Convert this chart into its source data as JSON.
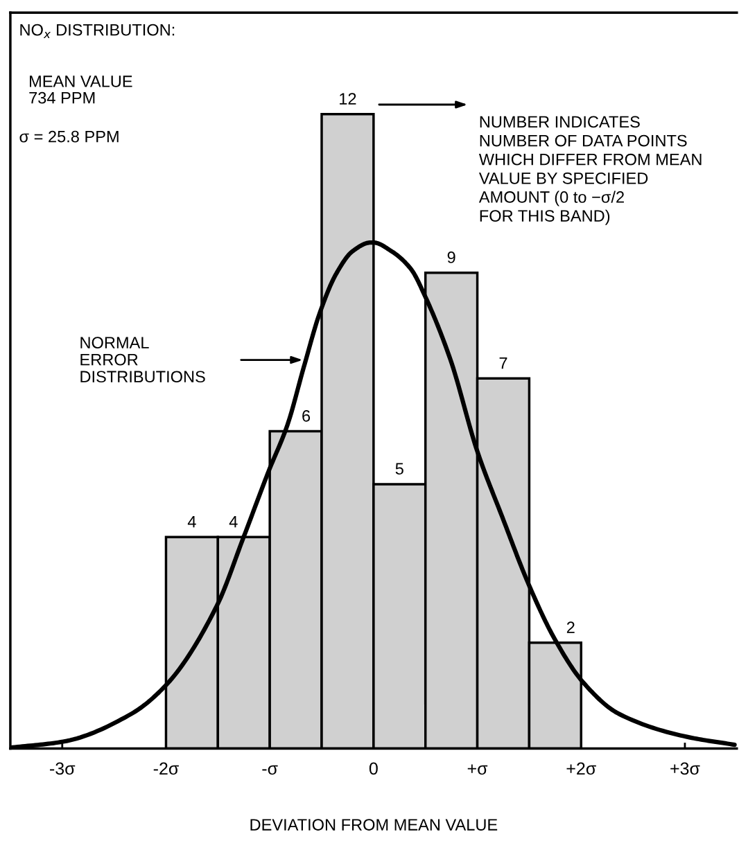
{
  "chart_data": {
    "type": "histogram",
    "title": "NO$_{x}$ DISTRIBUTION:",
    "xlabel": "DEVIATION FROM MEAN VALUE",
    "bins": [
      -2,
      -1.5,
      -1,
      -0.5,
      0,
      0.5,
      1,
      1.5,
      2
    ],
    "values": [
      4,
      4,
      6,
      12,
      5,
      9,
      7,
      2
    ],
    "color": "#d0d0d0",
    "value_labels": [
      "4",
      "4",
      "6",
      "12",
      "5",
      "9",
      "7",
      "2"
    ],
    "series": [
      {
        "type": "line",
        "color": "#000000",
        "x": [
          -3.48,
          -2.99,
          -2.33,
          -1.99,
          -1.51,
          -1.25,
          -1.01,
          -0.83,
          -0.67,
          -0.52,
          -0.36,
          -0.2,
          -0.03,
          0,
          0.17,
          0.36,
          0.5,
          0.74,
          1.0,
          1.24,
          1.5,
          1.74,
          2.02,
          2.36,
          3.02,
          3.48
        ],
        "values": [
          0.02,
          0.13,
          0.66,
          1.22,
          2.7,
          4.01,
          5.25,
          6.12,
          7.23,
          8.23,
          8.98,
          9.41,
          9.57,
          9.57,
          9.41,
          9.07,
          8.54,
          7.36,
          5.62,
          4.38,
          3.08,
          2.09,
          1.25,
          0.66,
          0.22,
          0.07
        ]
      }
    ],
    "annotations": [
      "MEAN VALUE\n734 PPM",
      "σ = 25.8 PPM",
      "NUMBER INDICATES\nNUMBER OF DATA POINTS\nWHICH DIFFER FROM MEAN\nVALUE BY SPECIFIED\nAMOUNT (0 to −σ/2\nFOR THIS BAND)",
      "NORMAL\nERROR\nDISTRIBUTIONS"
    ],
    "xlim": [
      -3.5,
      3.5
    ],
    "xticks": [
      {
        "value": -3,
        "label": "-3σ"
      },
      {
        "value": -2,
        "label": "-2σ"
      },
      {
        "value": -1,
        "label": "-σ"
      },
      0,
      {
        "value": 1,
        "label": "+σ"
      },
      {
        "value": 2,
        "label": "+2σ"
      },
      {
        "value": 3,
        "label": "+3σ"
      }
    ],
    "tick_labels": "x"
  }
}
